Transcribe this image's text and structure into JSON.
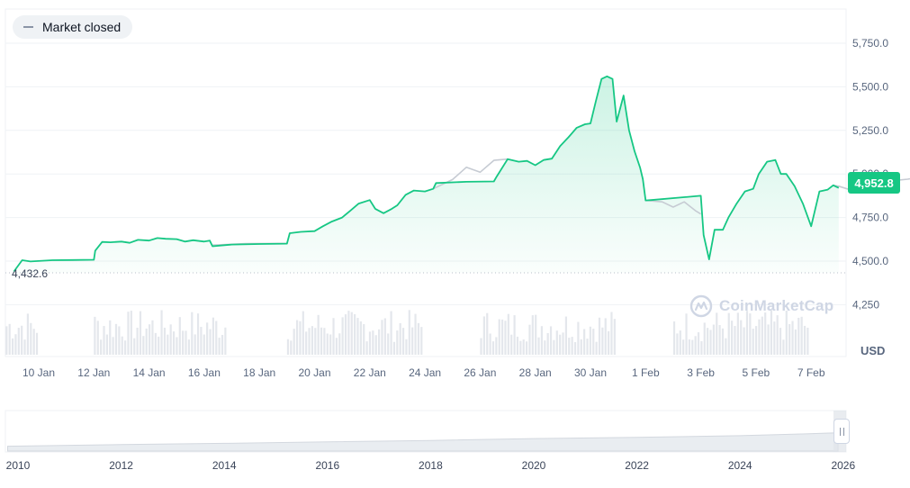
{
  "status": {
    "label": "Market closed"
  },
  "currency": "USD",
  "last_value_label": "4,952.8",
  "base_value_label": "4,432.6",
  "watermark": {
    "text": "CoinMarketCap",
    "icon": "coinmarketcap-logo-icon"
  },
  "colors": {
    "line": "#16c784",
    "line_grey": "#c6cbd3",
    "grid": "#eff2f5",
    "volume": "#e4e7ec",
    "accent": "#16c784"
  },
  "chart_data": [
    {
      "type": "area",
      "title": "",
      "xlabel": "",
      "ylabel": "",
      "x_unit": "days since 10 Jan",
      "x_ticks": [
        "10 Jan",
        "12 Jan",
        "14 Jan",
        "16 Jan",
        "18 Jan",
        "20 Jan",
        "22 Jan",
        "24 Jan",
        "26 Jan",
        "28 Jan",
        "30 Jan",
        "1 Feb",
        "3 Feb",
        "5 Feb",
        "7 Feb"
      ],
      "y_ticks": [
        "4,250",
        "4,500.0",
        "4,750.0",
        "5,000.0",
        "5,250.0",
        "5,500.0",
        "5,750.0"
      ],
      "ylim": [
        4250,
        5780
      ],
      "baseline": 4432.6,
      "last": 4952.8,
      "grid": true,
      "series": [
        {
          "name": "",
          "color": "#16c784",
          "points": [
            [
              -0.9,
              4440
            ],
            [
              -0.6,
              4505
            ],
            [
              -0.3,
              4498
            ],
            [
              0.5,
              4505
            ],
            [
              1.2,
              4506
            ],
            [
              2.0,
              4508
            ],
            [
              2.05,
              4560
            ],
            [
              2.3,
              4610
            ],
            [
              2.6,
              4608
            ],
            [
              3.0,
              4612
            ],
            [
              3.3,
              4605
            ],
            [
              3.6,
              4622
            ],
            [
              4.0,
              4618
            ],
            [
              4.3,
              4632
            ],
            [
              4.6,
              4628
            ],
            [
              5.0,
              4626
            ],
            [
              5.3,
              4612
            ],
            [
              5.6,
              4620
            ],
            [
              6.0,
              4612
            ],
            [
              6.2,
              4618
            ],
            [
              6.3,
              4585
            ],
            [
              7.0,
              4595
            ],
            [
              8.0,
              4598
            ],
            [
              9.0,
              4600
            ],
            [
              9.1,
              4660
            ],
            [
              9.5,
              4668
            ],
            [
              10.0,
              4672
            ],
            [
              10.3,
              4700
            ],
            [
              10.6,
              4725
            ],
            [
              11.0,
              4750
            ],
            [
              11.3,
              4790
            ],
            [
              11.6,
              4830
            ],
            [
              12.0,
              4850
            ],
            [
              12.2,
              4800
            ],
            [
              12.5,
              4775
            ],
            [
              12.8,
              4800
            ],
            [
              13.0,
              4820
            ],
            [
              13.3,
              4880
            ],
            [
              13.6,
              4905
            ],
            [
              14.0,
              4900
            ],
            [
              14.3,
              4915
            ],
            [
              14.4,
              4948
            ],
            [
              15.5,
              4955
            ],
            [
              16.5,
              4957
            ],
            [
              16.6,
              4985
            ],
            [
              17.0,
              5085
            ],
            [
              17.4,
              5070
            ],
            [
              17.7,
              5075
            ],
            [
              18.0,
              5050
            ],
            [
              18.3,
              5080
            ],
            [
              18.6,
              5088
            ],
            [
              18.9,
              5160
            ],
            [
              19.2,
              5210
            ],
            [
              19.5,
              5265
            ],
            [
              19.8,
              5285
            ],
            [
              20.0,
              5290
            ],
            [
              20.2,
              5420
            ],
            [
              20.4,
              5545
            ],
            [
              20.6,
              5560
            ],
            [
              20.8,
              5545
            ],
            [
              20.95,
              5300
            ],
            [
              21.2,
              5450
            ],
            [
              21.4,
              5250
            ],
            [
              21.6,
              5130
            ],
            [
              21.8,
              5035
            ],
            [
              21.9,
              4970
            ],
            [
              22.0,
              4848
            ],
            [
              22.2,
              4850
            ],
            [
              24.0,
              4875
            ],
            [
              24.1,
              4650
            ],
            [
              24.3,
              4510
            ],
            [
              24.5,
              4680
            ],
            [
              24.8,
              4680
            ],
            [
              25.0,
              4750
            ],
            [
              25.3,
              4830
            ],
            [
              25.6,
              4900
            ],
            [
              25.9,
              4915
            ],
            [
              26.1,
              5000
            ],
            [
              26.4,
              5070
            ],
            [
              26.7,
              5080
            ],
            [
              26.9,
              5000
            ],
            [
              27.1,
              5000
            ],
            [
              27.4,
              4930
            ],
            [
              27.7,
              4830
            ],
            [
              28.0,
              4700
            ],
            [
              28.3,
              4900
            ],
            [
              28.6,
              4910
            ],
            [
              28.8,
              4935
            ],
            [
              29.0,
              4920
            ]
          ]
        },
        {
          "name": "",
          "color": "#c6cbd3",
          "points": [
            [
              6.3,
              4592
            ],
            [
              7.5,
              4600
            ],
            [
              9.0,
              4602
            ],
            [
              14.3,
              4915
            ],
            [
              15.0,
              4968
            ],
            [
              15.5,
              5038
            ],
            [
              16.0,
              5010
            ],
            [
              16.5,
              5078
            ],
            [
              17.0,
              5085
            ],
            [
              22.0,
              4848
            ],
            [
              22.6,
              4840
            ],
            [
              23.0,
              4810
            ],
            [
              23.4,
              4840
            ],
            [
              23.8,
              4790
            ],
            [
              24.0,
              4770
            ],
            [
              28.8,
              4935
            ],
            [
              29.0,
              4930
            ],
            [
              29.5,
              4905
            ],
            [
              30.0,
              4922
            ],
            [
              30.5,
              4948
            ],
            [
              31.0,
              4962
            ],
            [
              31.5,
              4970
            ],
            [
              32.0,
              4985
            ],
            [
              32.4,
              4998
            ],
            [
              32.9,
              4985
            ]
          ]
        }
      ]
    },
    {
      "type": "area",
      "title": "",
      "x_ticks": [
        "2010",
        "2012",
        "2014",
        "2016",
        "2018",
        "2020",
        "2022",
        "2024",
        "2026"
      ],
      "x": [
        2009.8,
        2012,
        2014,
        2016,
        2018,
        2020,
        2022,
        2024,
        2025.2,
        2025.9
      ],
      "values": [
        0.15,
        0.26,
        0.35,
        0.45,
        0.55,
        0.68,
        0.76,
        0.88,
        1.0,
        1.08
      ]
    }
  ]
}
